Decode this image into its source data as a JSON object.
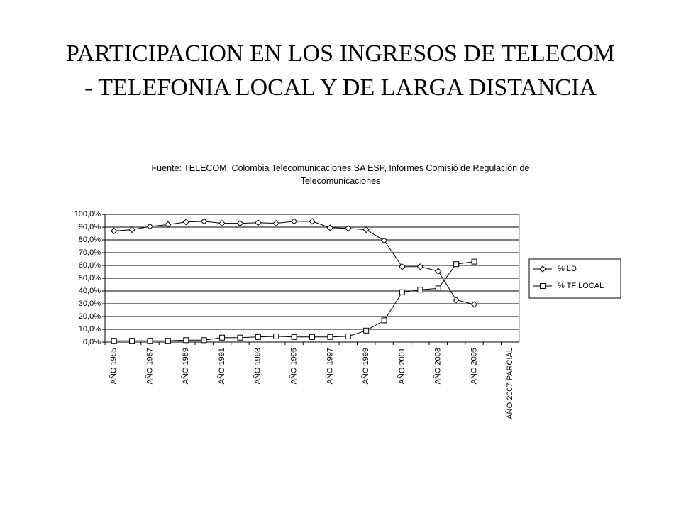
{
  "chart_data": {
    "type": "line",
    "title": "PARTICIPACION EN LOS INGRESOS DE TELECOM - TELEFONIA LOCAL Y DE LARGA DISTANCIA",
    "subtitle": "Fuente: TELECOM, Colombia Telecomunicaciones SA ESP, Informes Comisió de Regulación de Telecomunicaciones",
    "categories": [
      "AÑO 1985",
      null,
      "AÑO 1987",
      null,
      "AÑO 1989",
      null,
      "AÑO 1991",
      null,
      "AÑO 1993",
      null,
      "AÑO 1995",
      null,
      "AÑO 1997",
      null,
      "AÑO 1999",
      null,
      "AÑO 2001",
      null,
      "AÑO 2003",
      null,
      "AÑO 2005",
      null,
      "AÑO 2007 PARCIAL"
    ],
    "series": [
      {
        "name": "% LD",
        "color": "#000000",
        "marker": "diamond",
        "values": [
          87,
          88,
          90.5,
          92,
          94,
          94.5,
          93,
          93,
          93.5,
          93,
          94.5,
          94.5,
          89.5,
          89,
          88,
          79.5,
          59,
          59,
          55.5,
          33,
          29.5,
          null,
          null
        ]
      },
      {
        "name": "% TF LOCAL",
        "color": "#000000",
        "marker": "square",
        "values": [
          1,
          1,
          1,
          1,
          1.5,
          1.5,
          3.5,
          3.5,
          4,
          4.5,
          4,
          4,
          4,
          4.5,
          9,
          17,
          39,
          41,
          42,
          61,
          63,
          null,
          null
        ]
      }
    ],
    "ylim": [
      0,
      100
    ],
    "yticks": [
      {
        "value": 0,
        "label": "0,0%"
      },
      {
        "value": 10,
        "label": "10,0%"
      },
      {
        "value": 20,
        "label": "20,0%"
      },
      {
        "value": 30,
        "label": "30,0%"
      },
      {
        "value": 40,
        "label": "40,0%"
      },
      {
        "value": 50,
        "label": "50,0%"
      },
      {
        "value": 60,
        "label": "60,0%"
      },
      {
        "value": 70,
        "label": "70,0%"
      },
      {
        "value": 80,
        "label": "80,0%"
      },
      {
        "value": 90,
        "label": "90,0%"
      },
      {
        "value": 100,
        "label": "100,0%"
      }
    ],
    "grid": true,
    "legend": "right"
  }
}
